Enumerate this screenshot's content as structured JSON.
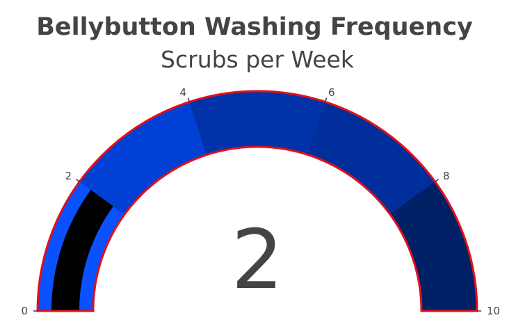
{
  "chart_data": {
    "type": "gauge",
    "title": "Bellybutton Washing Frequency",
    "subtitle": "Scrubs per Week",
    "value": 2,
    "value_label": "2",
    "range": [
      0,
      10
    ],
    "ticks": [
      {
        "value": 0,
        "label": "0"
      },
      {
        "value": 2,
        "label": "2"
      },
      {
        "value": 4,
        "label": "4"
      },
      {
        "value": 6,
        "label": "6"
      },
      {
        "value": 8,
        "label": "8"
      },
      {
        "value": 10,
        "label": "10"
      }
    ],
    "steps": [
      {
        "range": [
          0,
          2
        ],
        "color": "#0a51ff"
      },
      {
        "range": [
          2,
          4
        ],
        "color": "#0040d4"
      },
      {
        "range": [
          4,
          6
        ],
        "color": "#0033aa"
      },
      {
        "range": [
          6,
          8
        ],
        "color": "#002e9b"
      },
      {
        "range": [
          8,
          10
        ],
        "color": "#002066"
      }
    ],
    "bar_color": "#000000",
    "border_color": "#e0101a",
    "tick_line_color": "#223377"
  }
}
